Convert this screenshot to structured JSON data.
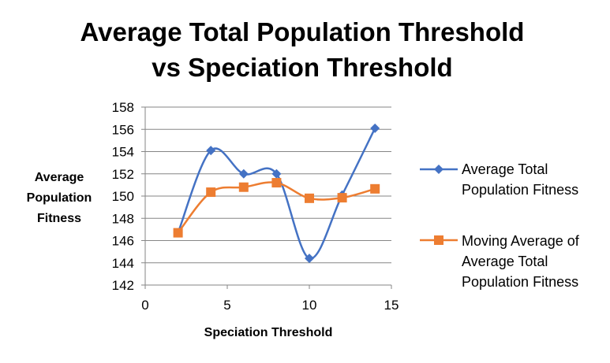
{
  "chart_data": {
    "type": "line",
    "title": [
      "Average Total Population Threshold",
      "vs Speciation Threshold"
    ],
    "xlabel": "Speciation  Threshold",
    "ylabel": [
      "Average",
      "Population",
      "Fitness"
    ],
    "xlim": [
      0,
      15
    ],
    "ylim": [
      142,
      158
    ],
    "xticks": [
      0,
      5,
      10,
      15
    ],
    "yticks": [
      142,
      144,
      146,
      148,
      150,
      152,
      154,
      156,
      158
    ],
    "grid": "horizontal",
    "legend_position": "right",
    "series": [
      {
        "name": "Average Total Population Fitness",
        "legend_lines": [
          "Average Total",
          "Population Fitness"
        ],
        "color": "#4472C4",
        "marker": "diamond",
        "smooth": true,
        "x": [
          2,
          4,
          6,
          8,
          10,
          12,
          14
        ],
        "y": [
          146.7,
          154.1,
          152.0,
          152.0,
          144.4,
          150.1,
          156.1
        ]
      },
      {
        "name": "Moving Average of Average Total Population Fitness",
        "legend_lines": [
          "Moving Average of",
          "Average Total",
          "Population Fitness"
        ],
        "color": "#ED7D31",
        "marker": "square",
        "smooth": true,
        "x": [
          2,
          4,
          6,
          8,
          10,
          12,
          14
        ],
        "y": [
          146.7,
          150.35,
          150.8,
          151.2,
          149.8,
          149.85,
          150.65
        ]
      }
    ]
  }
}
